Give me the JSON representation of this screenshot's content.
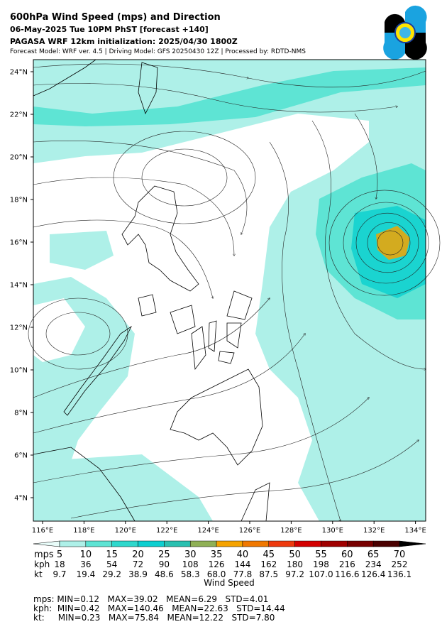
{
  "header": {
    "title": "600hPa Wind Speed (mps) and Direction",
    "subtitle": "06-May-2025 Tue 10PM PhST [forecast +140]",
    "init": "PAGASA WRF 12km initialization: 2025/04/30 1800Z",
    "credits": "Forecast Model: WRF ver. 4.5 | Driving Model: GFS 20250430 12Z | Processed by: RDTD-NMS"
  },
  "map": {
    "lat_labels": [
      "24°N",
      "22°N",
      "20°N",
      "18°N",
      "16°N",
      "14°N",
      "12°N",
      "10°N",
      "8°N",
      "6°N",
      "4°N"
    ],
    "lon_labels": [
      "116°E",
      "118°E",
      "120°E",
      "122°E",
      "124°E",
      "126°E",
      "128°E",
      "130°E",
      "132°E",
      "134°E"
    ]
  },
  "colorbar": {
    "title": "Wind Speed",
    "colors": [
      "#e8fcf9",
      "#aef0e8",
      "#5ee4d4",
      "#2ed8cc",
      "#0dcfd0",
      "#2ac0b0",
      "#8fb055",
      "#f5a300",
      "#f07800",
      "#ee3a0e",
      "#d40000",
      "#a00000",
      "#780000",
      "#4a0000",
      "#000000"
    ],
    "rows": [
      {
        "unit": "mps",
        "labels": [
          "5",
          "10",
          "15",
          "20",
          "25",
          "30",
          "35",
          "40",
          "45",
          "50",
          "55",
          "60",
          "65",
          "70"
        ]
      },
      {
        "unit": "kph",
        "labels": [
          "18",
          "36",
          "54",
          "72",
          "90",
          "108",
          "126",
          "144",
          "162",
          "180",
          "198",
          "216",
          "234",
          "252"
        ]
      },
      {
        "unit": "kt",
        "labels": [
          "9.7",
          "19.4",
          "29.2",
          "38.9",
          "48.6",
          "58.3",
          "68.0",
          "77.8",
          "87.5",
          "97.2",
          "107.0",
          "116.6",
          "126.4",
          "136.1"
        ]
      }
    ]
  },
  "stats": [
    "mps: MIN=0.12   MAX=39.02   MEAN=6.29   STD=4.01",
    "kph:  MIN=0.42   MAX=140.46   MEAN=22.63   STD=14.44",
    "kt:     MIN=0.23   MAX=75.84   MEAN=12.22   STD=7.80"
  ]
}
